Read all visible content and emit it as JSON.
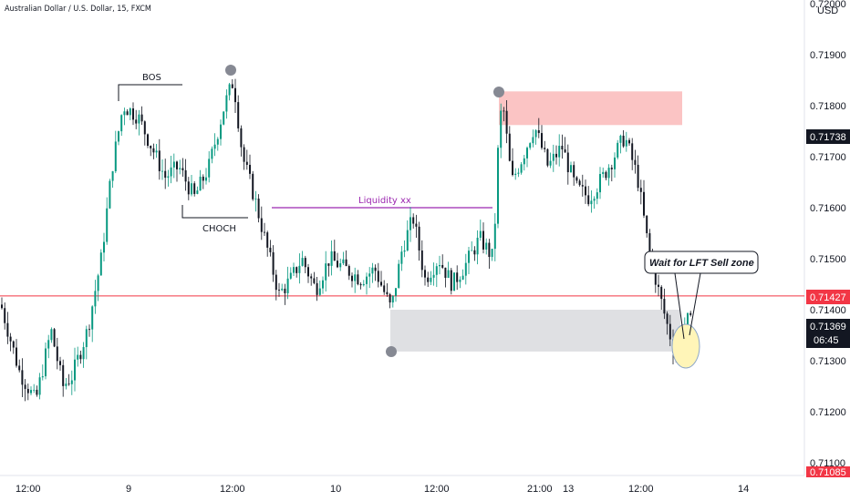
{
  "header": {
    "symbol_title": "Australian Dollar / U.S. Dollar, 15, FXCM",
    "currency": "USD"
  },
  "annotations": {
    "bos": "BOS",
    "choch": "CHOCH",
    "liquidity": "Liquidity  xx",
    "callout": "Wait for LFT Sell zone"
  },
  "price_labels": {
    "upper": "0.71738",
    "current_line": "0.71427",
    "last_price": "0.71369",
    "countdown": "06:45",
    "bottom": "0.71085"
  },
  "colors": {
    "bull_candle": "#089981",
    "bear_candle": "#131722",
    "horizontal_line": "#f23645",
    "liquidity_line": "#9c27b0",
    "supply_zone": "#fbc4c4",
    "demand_zone": "#dfe0e3",
    "marker": "#868993",
    "callout_circle": "#fff5b8"
  },
  "chart_data": {
    "type": "candlestick",
    "y_axis": {
      "ylim": [
        0.7108,
        0.7202
      ],
      "ticks": [
        "0.72000",
        "0.71900",
        "0.71800",
        "0.71700",
        "0.71600",
        "0.71500",
        "0.71400",
        "0.71300",
        "0.71200",
        "0.71100"
      ]
    },
    "x_axis": {
      "ticks": [
        "12:00",
        "9",
        "12:00",
        "10",
        "12:00",
        "21:00",
        "13",
        "12:00",
        "14"
      ]
    },
    "price_path": [
      [
        0,
        0.7141
      ],
      [
        20,
        0.7128
      ],
      [
        38,
        0.7122
      ],
      [
        55,
        0.7136
      ],
      [
        68,
        0.7125
      ],
      [
        78,
        0.7127
      ],
      [
        95,
        0.7136
      ],
      [
        110,
        0.715
      ],
      [
        122,
        0.7168
      ],
      [
        134,
        0.718
      ],
      [
        150,
        0.7178
      ],
      [
        165,
        0.7172
      ],
      [
        180,
        0.7166
      ],
      [
        195,
        0.7168
      ],
      [
        212,
        0.7162
      ],
      [
        228,
        0.7168
      ],
      [
        245,
        0.718
      ],
      [
        255,
        0.7185
      ],
      [
        265,
        0.717
      ],
      [
        278,
        0.7162
      ],
      [
        292,
        0.7152
      ],
      [
        305,
        0.7143
      ],
      [
        318,
        0.7146
      ],
      [
        330,
        0.715
      ],
      [
        345,
        0.7144
      ],
      [
        360,
        0.715
      ],
      [
        378,
        0.7148
      ],
      [
        395,
        0.7146
      ],
      [
        410,
        0.7148
      ],
      [
        428,
        0.714
      ],
      [
        440,
        0.7152
      ],
      [
        452,
        0.7158
      ],
      [
        465,
        0.7146
      ],
      [
        480,
        0.715
      ],
      [
        495,
        0.7145
      ],
      [
        510,
        0.7149
      ],
      [
        525,
        0.7154
      ],
      [
        540,
        0.715
      ],
      [
        546,
        0.7175
      ],
      [
        550,
        0.7181
      ],
      [
        560,
        0.7165
      ],
      [
        572,
        0.717
      ],
      [
        585,
        0.7176
      ],
      [
        600,
        0.7168
      ],
      [
        615,
        0.7172
      ],
      [
        630,
        0.7164
      ],
      [
        645,
        0.7162
      ],
      [
        660,
        0.7166
      ],
      [
        672,
        0.717
      ],
      [
        684,
        0.7174
      ],
      [
        698,
        0.7166
      ],
      [
        710,
        0.7152
      ],
      [
        722,
        0.7143
      ],
      [
        732,
        0.7136
      ],
      [
        742,
        0.713
      ],
      [
        752,
        0.7138
      ],
      [
        758,
        0.7137
      ]
    ],
    "levels": {
      "horizontal_line": 0.71427,
      "liquidity": {
        "x_range": [
          298,
          540
        ],
        "price": 0.716
      },
      "supply_zone": {
        "price_top": 0.71828,
        "price_bottom": 0.71762
      },
      "demand_zone": {
        "price_top": 0.714,
        "price_bottom": 0.71318
      }
    }
  }
}
